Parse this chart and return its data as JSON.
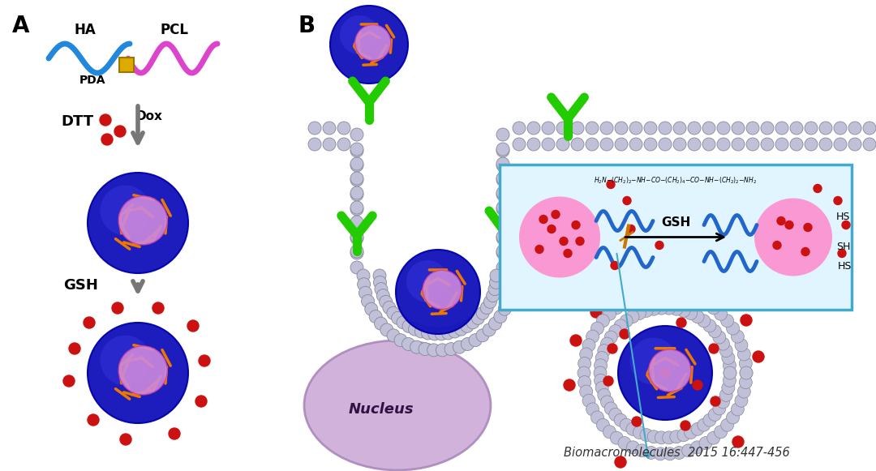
{
  "title_a": "A",
  "title_b": "B",
  "label_ha": "HA",
  "label_pcl": "PCL",
  "label_pda": "PDA",
  "label_dtt": "DTT",
  "label_dox": "Dox",
  "label_gsh1": "GSH",
  "label_gsh2": "GSH",
  "label_nucleus": "Nucleus",
  "label_citation": "Biomacromolecules  2015 16:447-456",
  "color_blue_wave": "#2288dd",
  "color_pink_wave": "#dd44cc",
  "color_pda_yellow": "#ddaa00",
  "color_red_dot": "#cc1111",
  "color_green_receptor": "#22cc00",
  "color_np_outer": "#1111bb",
  "color_np_inner": "#cc88dd",
  "color_bead": "#c0c0d8",
  "color_bead_edge": "#888899",
  "color_orange": "#ee7700",
  "color_nucleus_fill": "#ccaad8",
  "color_nucleus_edge": "#aa88bb",
  "color_inset_bg": "#e0f5ff",
  "color_inset_edge": "#44aacc",
  "color_arrow_gray": "#777777",
  "color_pink_blob": "#ff88cc",
  "bg_color": "#ffffff"
}
